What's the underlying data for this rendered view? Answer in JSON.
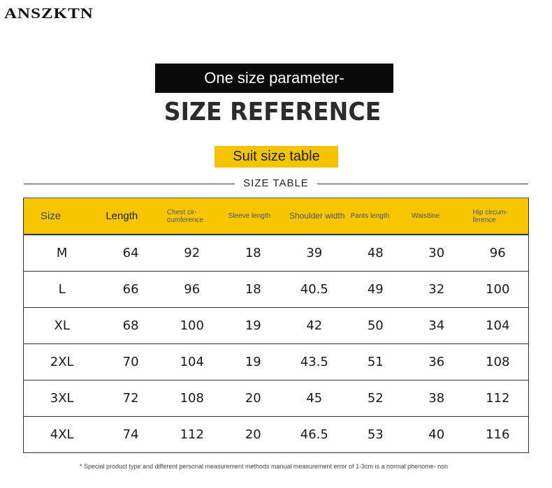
{
  "brand": "ANSZKTN",
  "banner": "One size parameter-",
  "title": "SIZE REFERENCE",
  "subtitle": "Suit size table",
  "table_heading": "SIZE TABLE",
  "table": {
    "headers": [
      "Size",
      "Length",
      "Chest cir- cumference",
      "Sleeve length",
      "Shoulder width",
      "Pants length",
      "Waistline",
      "Hip circum- ference"
    ],
    "rows": [
      [
        "M",
        "64",
        "92",
        "18",
        "39",
        "48",
        "30",
        "96"
      ],
      [
        "L",
        "66",
        "96",
        "18",
        "40.5",
        "49",
        "32",
        "100"
      ],
      [
        "XL",
        "68",
        "100",
        "19",
        "42",
        "50",
        "34",
        "104"
      ],
      [
        "2XL",
        "70",
        "104",
        "19",
        "43.5",
        "51",
        "36",
        "108"
      ],
      [
        "3XL",
        "72",
        "108",
        "20",
        "45",
        "52",
        "38",
        "112"
      ],
      [
        "4XL",
        "74",
        "112",
        "20",
        "46.5",
        "53",
        "40",
        "116"
      ]
    ]
  },
  "note": "* Special product type and different personal measurement methods manual measurement error of 1-3cm is a normal phenome- non",
  "colors": {
    "accent": "#f7c600",
    "banner_bg": "#0a0a0a"
  }
}
